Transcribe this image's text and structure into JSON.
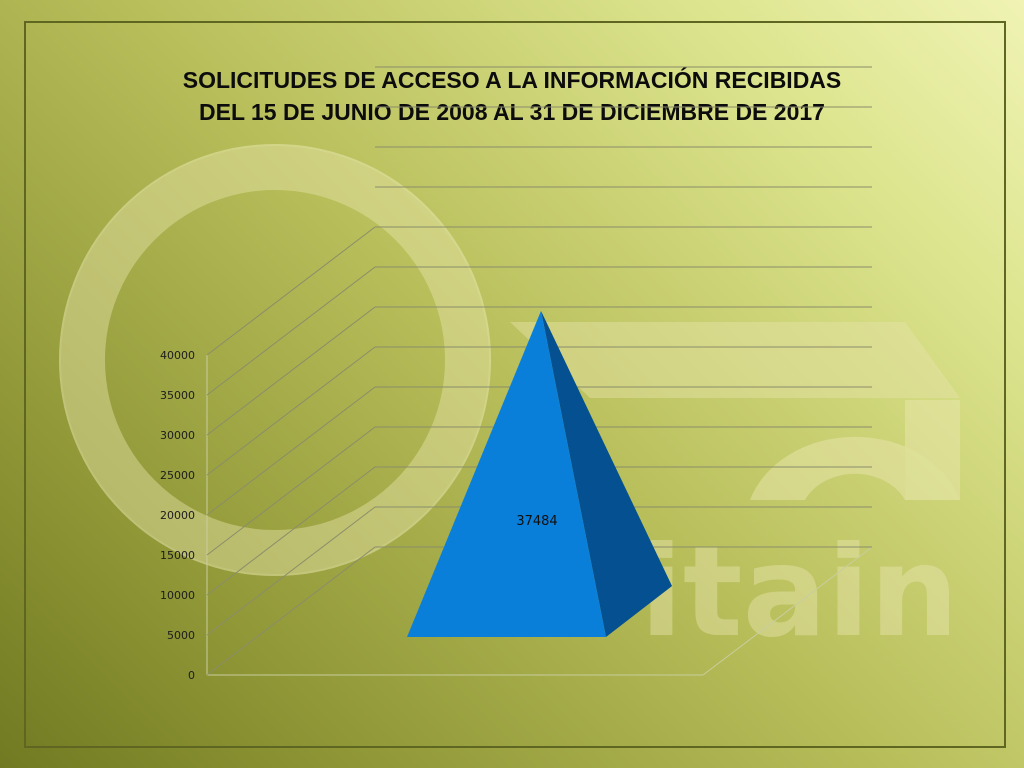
{
  "chart_data": {
    "type": "bar",
    "shape": "pyramid-3d",
    "title": "SOLICITUDES DE ACCESO A LA INFORMACIÓN RECIBIDAS DEL 15 DE JUNIO DE 2008 AL 31 DE DICIEMBRE DE 2017",
    "title_lines": [
      "SOLICITUDES DE ACCESO A LA INFORMACIÓN RECIBIDAS",
      "DEL 15 DE JUNIO DE 2008 AL 31 DE DICIEMBRE DE 2017"
    ],
    "categories": [
      ""
    ],
    "values": [
      37484
    ],
    "data_labels": [
      "37484"
    ],
    "ylim": [
      0,
      60000
    ],
    "yticks": [
      "0",
      "5000",
      "10000",
      "15000",
      "20000",
      "25000",
      "30000",
      "35000",
      "40000"
    ],
    "grid": true,
    "legend": false,
    "colors": {
      "front": "#0a7fd9",
      "side": "#045090",
      "gridline": "#8a8d6a",
      "axis_line": "#c9cd9e"
    }
  },
  "background_logo": {
    "text": "itain",
    "icon": "itaih-logo-watermark"
  }
}
